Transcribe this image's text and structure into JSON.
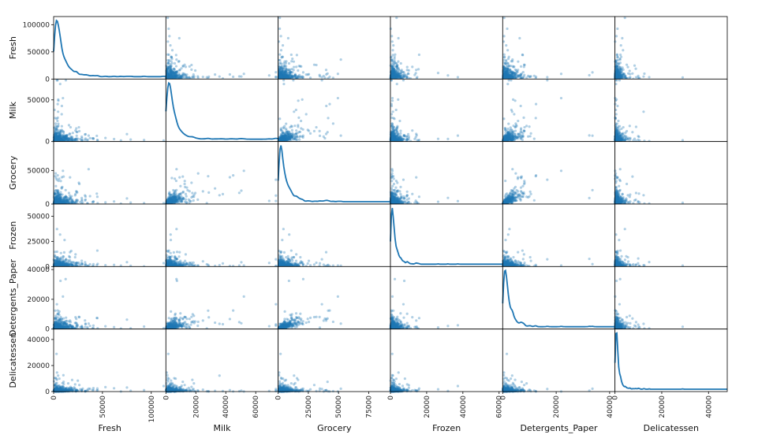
{
  "chart_data": {
    "type": "scatter",
    "subtype": "scatter-matrix",
    "diagonal": "kde",
    "variables": [
      "Fresh",
      "Milk",
      "Grocery",
      "Frozen",
      "Detergents_Paper",
      "Delicatessen"
    ],
    "axis_ranges": {
      "Fresh": [
        0,
        115000
      ],
      "Milk": [
        0,
        75000
      ],
      "Grocery": [
        0,
        93000
      ],
      "Frozen": [
        0,
        62000
      ],
      "Detergents_Paper": [
        0,
        42000
      ],
      "Delicatessen": [
        0,
        48000
      ]
    },
    "x_ticks": {
      "Fresh": [
        0,
        50000,
        100000
      ],
      "Milk": [
        0,
        20000,
        40000,
        60000
      ],
      "Grocery": [
        0,
        25000,
        50000,
        75000
      ],
      "Frozen": [
        0,
        20000,
        40000,
        60000
      ],
      "Detergents_Paper": [
        0,
        20000,
        40000
      ],
      "Delicatessen": [
        0,
        20000,
        40000
      ]
    },
    "y_ticks": {
      "Fresh": [
        0,
        50000,
        100000
      ],
      "Milk": [
        0,
        50000
      ],
      "Grocery": [
        0,
        50000
      ],
      "Frozen": [
        0,
        25000,
        50000
      ],
      "Detergents_Paper": [
        0,
        20000,
        40000
      ],
      "Delicatessen": [
        0,
        20000,
        40000
      ]
    },
    "scale": {
      "Fresh": 8000,
      "Milk": 5000,
      "Grocery": 6500,
      "Frozen": 2500,
      "Detergents_Paper": 2500,
      "Delicatessen": 1200
    },
    "points_per_panel": 440,
    "point_color": "#1f77b4",
    "point_alpha": 0.35,
    "kde_color": "#1f77b4",
    "grid": false
  }
}
